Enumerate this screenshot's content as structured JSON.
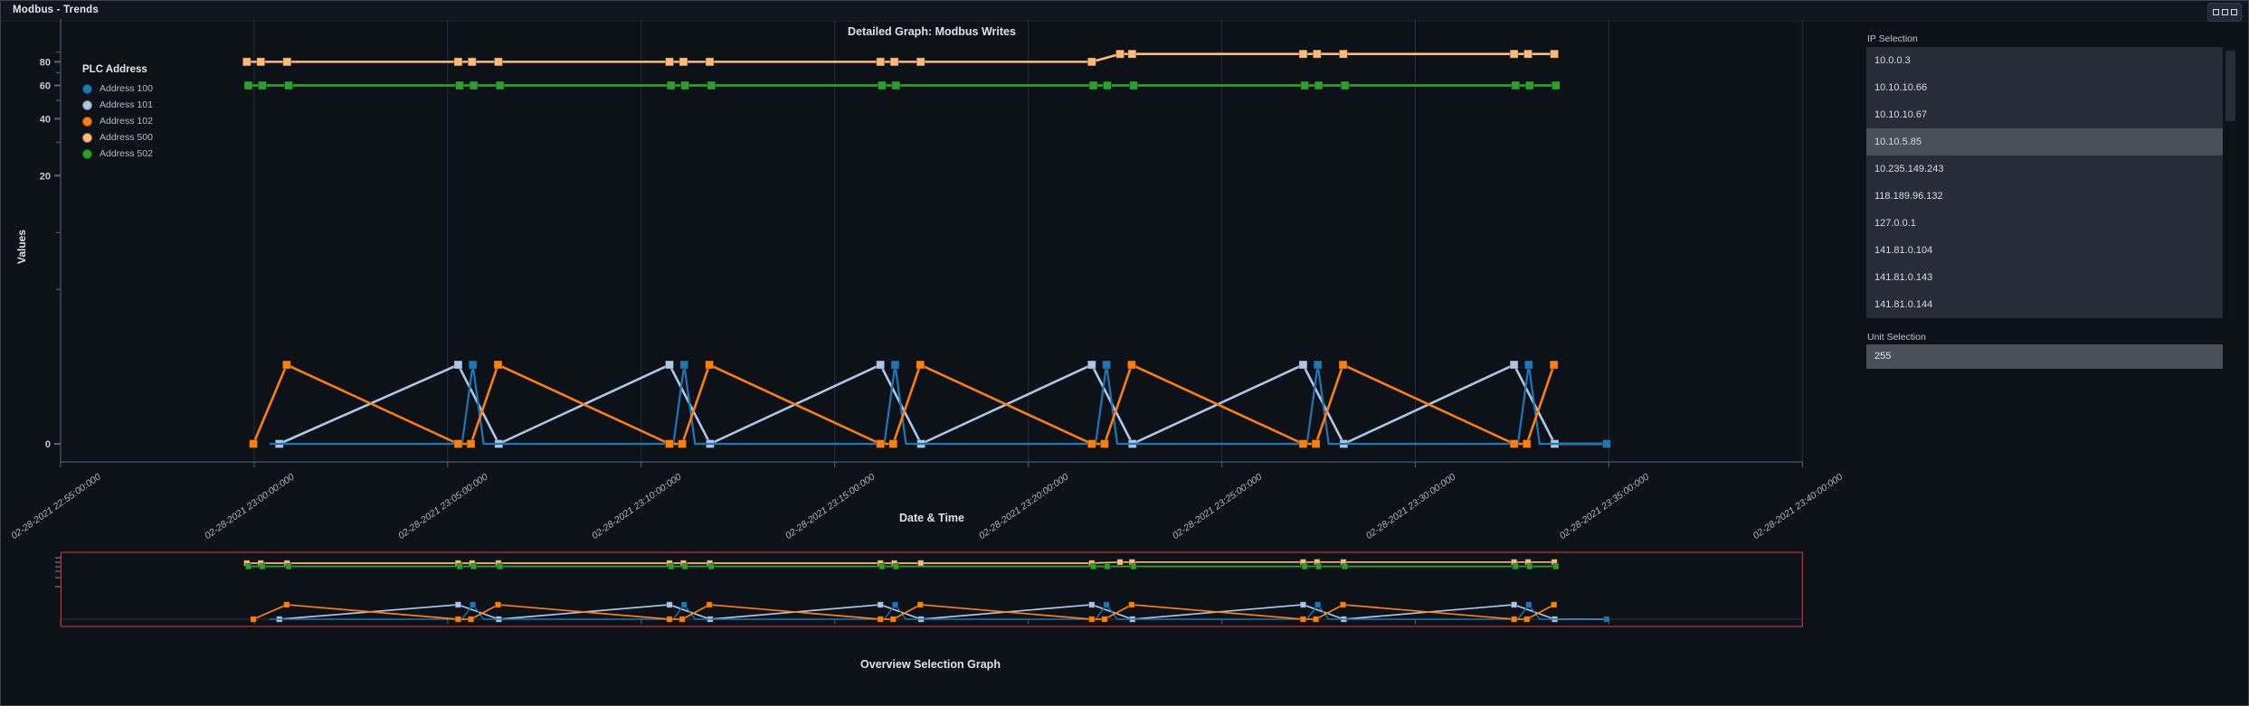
{
  "window": {
    "title": "Modbus - Trends",
    "menu_icon": "ellipsis-squares"
  },
  "chart_data": {
    "type": "line",
    "title": "Detailed Graph: Modbus Writes",
    "xlabel": "Date & Time",
    "ylabel": "Values",
    "legend_title": "PLC Address",
    "x_unit_minutes_after": "02-28-2021 22:55:00",
    "x_tick_minutes": [
      0,
      5,
      10,
      15,
      20,
      25,
      30,
      35,
      40,
      45
    ],
    "x_tick_labels": [
      "02-28-2021 22:55:00:000",
      "02-28-2021 23:00:00:000",
      "02-28-2021 23:05:00:000",
      "02-28-2021 23:10:00:000",
      "02-28-2021 23:15:00:000",
      "02-28-2021 23:20:00:000",
      "02-28-2021 23:25:00:000",
      "02-28-2021 23:30:00:000",
      "02-28-2021 23:35:00:000",
      "02-28-2021 23:40:00:000"
    ],
    "y_scale": "log",
    "y_major_ticks": [
      80,
      60,
      40,
      20,
      0
    ],
    "y_minor_ticks": [
      90,
      70,
      50,
      30,
      10,
      5
    ],
    "grid": "vertical-only",
    "series": [
      {
        "name": "Address 101",
        "color": "#aec7e8",
        "line_width": 2.6,
        "points": [
          [
            5.65,
            0
          ],
          [
            10.27,
            2
          ],
          [
            11.32,
            0
          ],
          [
            15.73,
            2
          ],
          [
            16.78,
            0
          ],
          [
            21.18,
            2
          ],
          [
            22.23,
            0
          ],
          [
            26.64,
            2
          ],
          [
            27.69,
            0
          ],
          [
            32.1,
            2
          ],
          [
            33.15,
            0
          ],
          [
            37.55,
            2
          ],
          [
            38.6,
            0
          ],
          [
            39.94,
            0
          ]
        ],
        "markers": [
          [
            5.65,
            0
          ],
          [
            10.27,
            2
          ],
          [
            11.32,
            0
          ],
          [
            15.73,
            2
          ],
          [
            16.78,
            0
          ],
          [
            21.18,
            2
          ],
          [
            22.23,
            0
          ],
          [
            26.64,
            2
          ],
          [
            27.69,
            0
          ],
          [
            32.1,
            2
          ],
          [
            33.15,
            0
          ],
          [
            37.55,
            2
          ],
          [
            38.6,
            0
          ]
        ]
      },
      {
        "name": "Address 100",
        "color": "#1f77b4",
        "line_width": 2.2,
        "points": [
          [
            5.4,
            0
          ],
          [
            10.37,
            0
          ],
          [
            10.65,
            2
          ],
          [
            10.93,
            0
          ],
          [
            15.83,
            0
          ],
          [
            16.11,
            2
          ],
          [
            16.39,
            0
          ],
          [
            21.28,
            0
          ],
          [
            21.56,
            2
          ],
          [
            21.84,
            0
          ],
          [
            26.74,
            0
          ],
          [
            27.02,
            2
          ],
          [
            27.3,
            0
          ],
          [
            32.2,
            0
          ],
          [
            32.48,
            2
          ],
          [
            32.76,
            0
          ],
          [
            37.65,
            0
          ],
          [
            37.93,
            2
          ],
          [
            38.21,
            0
          ],
          [
            39.94,
            0
          ]
        ],
        "markers": [
          [
            10.65,
            2
          ],
          [
            16.11,
            2
          ],
          [
            21.56,
            2
          ],
          [
            27.02,
            2
          ],
          [
            32.48,
            2
          ],
          [
            37.93,
            2
          ],
          [
            39.94,
            0
          ]
        ]
      },
      {
        "name": "Address 102",
        "color": "#ff7f0e",
        "line_width": 2.6,
        "points": [
          [
            4.98,
            0
          ],
          [
            5.84,
            2
          ],
          [
            10.27,
            0
          ],
          [
            10.6,
            0
          ],
          [
            11.3,
            2
          ],
          [
            15.73,
            0
          ],
          [
            16.06,
            0
          ],
          [
            16.76,
            2
          ],
          [
            21.18,
            0
          ],
          [
            21.51,
            0
          ],
          [
            22.21,
            2
          ],
          [
            26.64,
            0
          ],
          [
            26.97,
            0
          ],
          [
            27.67,
            2
          ],
          [
            32.1,
            0
          ],
          [
            32.43,
            0
          ],
          [
            33.13,
            2
          ],
          [
            37.55,
            0
          ],
          [
            37.88,
            0
          ],
          [
            38.58,
            2
          ]
        ],
        "markers": [
          [
            4.98,
            0
          ],
          [
            5.84,
            2
          ],
          [
            10.27,
            0
          ],
          [
            10.6,
            0
          ],
          [
            11.3,
            2
          ],
          [
            15.73,
            0
          ],
          [
            16.06,
            0
          ],
          [
            16.76,
            2
          ],
          [
            21.18,
            0
          ],
          [
            21.51,
            0
          ],
          [
            22.21,
            2
          ],
          [
            26.64,
            0
          ],
          [
            26.97,
            0
          ],
          [
            27.67,
            2
          ],
          [
            32.1,
            0
          ],
          [
            32.43,
            0
          ],
          [
            33.13,
            2
          ],
          [
            37.55,
            0
          ],
          [
            37.88,
            0
          ],
          [
            38.58,
            2
          ]
        ]
      },
      {
        "name": "Address 500",
        "color": "#ffbb78",
        "line_width": 2.6,
        "points": [
          [
            4.81,
            80
          ],
          [
            5.17,
            80
          ],
          [
            5.85,
            80
          ],
          [
            10.27,
            80
          ],
          [
            10.63,
            80
          ],
          [
            11.31,
            80
          ],
          [
            15.73,
            80
          ],
          [
            16.09,
            80
          ],
          [
            16.77,
            80
          ],
          [
            21.18,
            80
          ],
          [
            21.54,
            80
          ],
          [
            22.22,
            80
          ],
          [
            26.64,
            80
          ],
          [
            27.37,
            88
          ],
          [
            27.68,
            88
          ],
          [
            32.1,
            88
          ],
          [
            32.46,
            88
          ],
          [
            33.14,
            88
          ],
          [
            37.55,
            88
          ],
          [
            37.91,
            88
          ],
          [
            38.59,
            88
          ]
        ],
        "markers": [
          [
            4.81,
            80
          ],
          [
            5.17,
            80
          ],
          [
            5.85,
            80
          ],
          [
            10.27,
            80
          ],
          [
            10.63,
            80
          ],
          [
            11.31,
            80
          ],
          [
            15.73,
            80
          ],
          [
            16.09,
            80
          ],
          [
            16.77,
            80
          ],
          [
            21.18,
            80
          ],
          [
            21.54,
            80
          ],
          [
            22.22,
            80
          ],
          [
            26.64,
            80
          ],
          [
            27.37,
            88
          ],
          [
            27.68,
            88
          ],
          [
            32.1,
            88
          ],
          [
            32.46,
            88
          ],
          [
            33.14,
            88
          ],
          [
            37.55,
            88
          ],
          [
            37.91,
            88
          ],
          [
            38.59,
            88
          ]
        ]
      },
      {
        "name": "Address 502",
        "color": "#2ca02c",
        "line_width": 2.8,
        "points": [
          [
            4.85,
            60
          ],
          [
            5.21,
            60
          ],
          [
            5.89,
            60
          ],
          [
            10.31,
            60
          ],
          [
            10.67,
            60
          ],
          [
            11.35,
            60
          ],
          [
            15.77,
            60
          ],
          [
            16.13,
            60
          ],
          [
            16.81,
            60
          ],
          [
            21.22,
            60
          ],
          [
            21.58,
            60
          ],
          [
            22.26,
            60
          ],
          [
            26.68,
            60
          ],
          [
            27.04,
            60
          ],
          [
            27.72,
            60
          ],
          [
            32.14,
            60
          ],
          [
            32.5,
            60
          ],
          [
            33.18,
            60
          ],
          [
            37.59,
            60
          ],
          [
            37.95,
            60
          ],
          [
            38.63,
            60
          ]
        ],
        "markers": [
          [
            4.85,
            60
          ],
          [
            5.21,
            60
          ],
          [
            5.89,
            60
          ],
          [
            10.31,
            60
          ],
          [
            10.67,
            60
          ],
          [
            11.35,
            60
          ],
          [
            15.77,
            60
          ],
          [
            16.13,
            60
          ],
          [
            16.81,
            60
          ],
          [
            21.22,
            60
          ],
          [
            21.58,
            60
          ],
          [
            26.68,
            60
          ],
          [
            27.04,
            60
          ],
          [
            27.72,
            60
          ],
          [
            32.14,
            60
          ],
          [
            32.5,
            60
          ],
          [
            33.18,
            60
          ],
          [
            37.59,
            60
          ],
          [
            37.95,
            60
          ],
          [
            38.63,
            60
          ]
        ]
      }
    ],
    "overview": {
      "title": "Overview Selection Graph",
      "selection_color": "#bb3333",
      "selection_range_minutes": [
        0.01,
        45.0
      ]
    }
  },
  "ip_selection": {
    "label": "IP Selection",
    "selected": "10.10.5.85",
    "options": [
      "10.0.0.3",
      "10.10.10.66",
      "10.10.10.67",
      "10.10.5.85",
      "10.235.149.243",
      "118.189.96.132",
      "127.0.0.1",
      "141.81.0.104",
      "141.81.0.143",
      "141.81.0.144"
    ]
  },
  "unit_selection": {
    "label": "Unit Selection",
    "selected": "255"
  }
}
